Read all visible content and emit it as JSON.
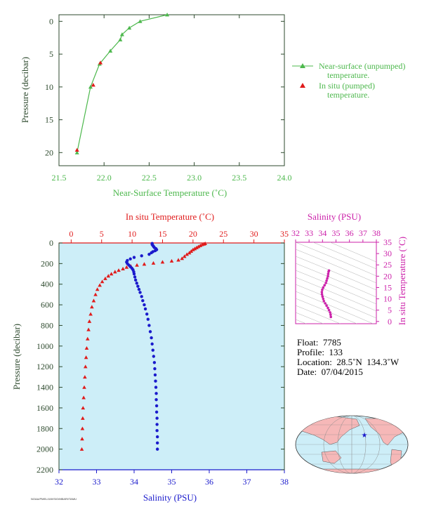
{
  "colors": {
    "green": "#4db84d",
    "red": "#e01b1b",
    "blue": "#1a1acc",
    "magenta": "#cc22aa",
    "axis_dark": "#2e4a2e",
    "profile_bg": "#cdeef8"
  },
  "chart_data": [
    {
      "type": "line",
      "id": "near-surface-temperature",
      "xlabel": "Near-Surface Temperature (˚C)",
      "ylabel": "Pressure (decibar)",
      "xlim": [
        21.5,
        24.0
      ],
      "ylim": [
        22,
        -1
      ],
      "xticks": [
        "21.5",
        "22.0",
        "22.5",
        "23.0",
        "23.5",
        "24.0"
      ],
      "yticks": [
        "0",
        "5",
        "10",
        "15",
        "20"
      ],
      "series": [
        {
          "name": "Near-surface (unpumped) temperature.",
          "marker": "triangle",
          "color": "green",
          "points": [
            [
              21.7,
              20.0
            ],
            [
              21.85,
              10.0
            ],
            [
              21.95,
              6.5
            ],
            [
              22.07,
              4.5
            ],
            [
              22.18,
              2.8
            ],
            [
              22.2,
              2.0
            ],
            [
              22.28,
              1.0
            ],
            [
              22.4,
              0.0
            ],
            [
              22.7,
              -1.0
            ]
          ]
        },
        {
          "name": "In situ (pumped) temperature.",
          "marker": "triangle",
          "color": "red",
          "points": [
            [
              21.7,
              19.6
            ],
            [
              21.88,
              9.7
            ],
            [
              21.96,
              6.3
            ]
          ]
        }
      ]
    },
    {
      "type": "scatter",
      "id": "profile",
      "x_top_label": "In situ Temperature (˚C)",
      "x_bottom_label": "Salinity (PSU)",
      "ylabel": "Pressure (decibar)",
      "temperature_xlim": [
        -2,
        35
      ],
      "salinity_xlim": [
        32,
        38
      ],
      "ylim": [
        2200,
        0
      ],
      "temperature_ticks": [
        "0",
        "5",
        "10",
        "15",
        "20",
        "25",
        "30",
        "35"
      ],
      "salinity_ticks": [
        "32",
        "33",
        "34",
        "35",
        "36",
        "37",
        "38"
      ],
      "yticks": [
        "0",
        "200",
        "400",
        "600",
        "800",
        "1000",
        "1200",
        "1400",
        "1600",
        "1800",
        "2000",
        "2200"
      ],
      "temperature": {
        "name": "In situ Temperature",
        "color": "red",
        "marker": "triangle",
        "points": [
          [
            22.0,
            5
          ],
          [
            21.8,
            10
          ],
          [
            21.5,
            15
          ],
          [
            21.2,
            25
          ],
          [
            20.9,
            35
          ],
          [
            20.6,
            45
          ],
          [
            20.3,
            55
          ],
          [
            20.0,
            65
          ],
          [
            19.7,
            80
          ],
          [
            19.4,
            95
          ],
          [
            19.0,
            110
          ],
          [
            18.6,
            130
          ],
          [
            18.2,
            150
          ],
          [
            17.6,
            165
          ],
          [
            16.5,
            175
          ],
          [
            15.0,
            185
          ],
          [
            13.5,
            195
          ],
          [
            12.0,
            205
          ],
          [
            10.8,
            215
          ],
          [
            9.8,
            225
          ],
          [
            9.1,
            235
          ],
          [
            8.5,
            250
          ],
          [
            7.8,
            265
          ],
          [
            7.2,
            280
          ],
          [
            6.6,
            300
          ],
          [
            6.1,
            320
          ],
          [
            5.6,
            345
          ],
          [
            5.1,
            375
          ],
          [
            4.7,
            410
          ],
          [
            4.3,
            450
          ],
          [
            4.0,
            500
          ],
          [
            3.7,
            560
          ],
          [
            3.4,
            620
          ],
          [
            3.2,
            690
          ],
          [
            3.0,
            760
          ],
          [
            2.85,
            840
          ],
          [
            2.7,
            930
          ],
          [
            2.55,
            1020
          ],
          [
            2.45,
            1110
          ],
          [
            2.35,
            1200
          ],
          [
            2.25,
            1300
          ],
          [
            2.15,
            1400
          ],
          [
            2.05,
            1500
          ],
          [
            1.95,
            1600
          ],
          [
            1.9,
            1700
          ],
          [
            1.85,
            1800
          ],
          [
            1.8,
            1900
          ],
          [
            1.75,
            2000
          ]
        ]
      },
      "salinity": {
        "name": "Salinity",
        "color": "blue",
        "marker": "circle",
        "points": [
          [
            34.48,
            5
          ],
          [
            34.48,
            15
          ],
          [
            34.5,
            25
          ],
          [
            34.52,
            35
          ],
          [
            34.54,
            45
          ],
          [
            34.58,
            55
          ],
          [
            34.6,
            65
          ],
          [
            34.56,
            75
          ],
          [
            34.5,
            85
          ],
          [
            34.46,
            95
          ],
          [
            34.4,
            110
          ],
          [
            34.2,
            125
          ],
          [
            34.0,
            140
          ],
          [
            33.9,
            155
          ],
          [
            33.82,
            170
          ],
          [
            33.8,
            185
          ],
          [
            33.82,
            200
          ],
          [
            33.86,
            215
          ],
          [
            33.9,
            230
          ],
          [
            33.94,
            245
          ],
          [
            33.97,
            260
          ],
          [
            33.99,
            280
          ],
          [
            34.0,
            300
          ],
          [
            34.02,
            330
          ],
          [
            34.04,
            360
          ],
          [
            34.07,
            390
          ],
          [
            34.1,
            420
          ],
          [
            34.13,
            450
          ],
          [
            34.16,
            480
          ],
          [
            34.2,
            520
          ],
          [
            34.23,
            560
          ],
          [
            34.27,
            600
          ],
          [
            34.3,
            640
          ],
          [
            34.34,
            690
          ],
          [
            34.37,
            740
          ],
          [
            34.4,
            800
          ],
          [
            34.43,
            860
          ],
          [
            34.46,
            920
          ],
          [
            34.48,
            980
          ],
          [
            34.5,
            1040
          ],
          [
            34.52,
            1100
          ],
          [
            34.54,
            1160
          ],
          [
            34.55,
            1220
          ],
          [
            34.56,
            1280
          ],
          [
            34.57,
            1340
          ],
          [
            34.58,
            1400
          ],
          [
            34.59,
            1460
          ],
          [
            34.59,
            1520
          ],
          [
            34.6,
            1580
          ],
          [
            34.6,
            1640
          ],
          [
            34.61,
            1700
          ],
          [
            34.61,
            1760
          ],
          [
            34.61,
            1820
          ],
          [
            34.62,
            1880
          ],
          [
            34.62,
            1940
          ],
          [
            34.62,
            2000
          ]
        ]
      }
    },
    {
      "type": "scatter",
      "id": "ts-diagram",
      "x_top_label": "Salinity (PSU)",
      "ylabel": "In situ Temperature (˚C)",
      "xlim": [
        32,
        38
      ],
      "ylim": [
        -1,
        35
      ],
      "xticks": [
        "32",
        "33",
        "34",
        "35",
        "36",
        "37",
        "38"
      ],
      "yticks": [
        "0",
        "5",
        "10",
        "15",
        "20",
        "25",
        "30",
        "35"
      ],
      "series": [
        {
          "name": "T-S",
          "color": "magenta",
          "points": [
            [
              34.62,
              2.0
            ],
            [
              34.6,
              3.0
            ],
            [
              34.56,
              4.0
            ],
            [
              34.48,
              5.0
            ],
            [
              34.4,
              6.0
            ],
            [
              34.3,
              7.0
            ],
            [
              34.2,
              8.0
            ],
            [
              34.1,
              9.0
            ],
            [
              34.05,
              10.0
            ],
            [
              34.0,
              11.0
            ],
            [
              33.96,
              12.0
            ],
            [
              33.95,
              13.0
            ],
            [
              33.98,
              14.0
            ],
            [
              34.05,
              15.0
            ],
            [
              34.15,
              16.0
            ],
            [
              34.25,
              17.0
            ],
            [
              34.3,
              18.0
            ],
            [
              34.35,
              19.0
            ],
            [
              34.4,
              20.0
            ],
            [
              34.42,
              21.0
            ],
            [
              34.45,
              22.0
            ],
            [
              34.48,
              22.5
            ]
          ]
        }
      ]
    }
  ],
  "legend": {
    "unpumped": "Near-surface (unpumped) temperature.",
    "pumped": "In situ (pumped) temperature."
  },
  "info": {
    "float": "Float:  7785",
    "profile": "Profile:  133",
    "location": "Location:  28.5˚N  134.3˚W",
    "date": "Date:  07/04/2015"
  },
  "footer": "NOAA/PMEL/UW/SIO/MBARI/TAMU",
  "map": {
    "float_lat": 28.5,
    "float_lon": -134.3
  }
}
